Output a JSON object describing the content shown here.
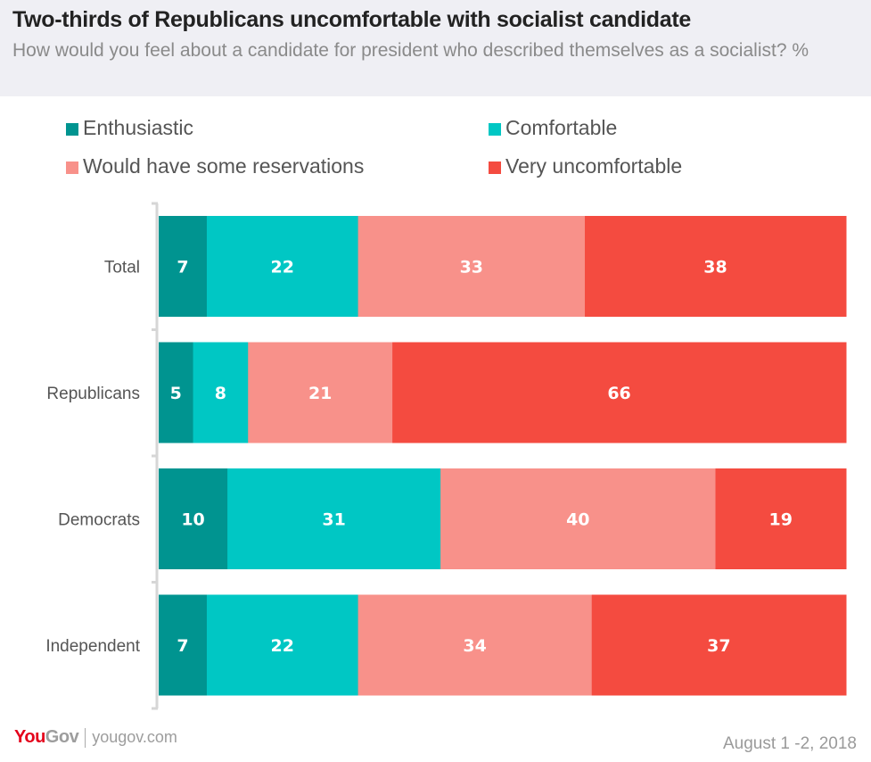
{
  "header": {
    "title": "Two-thirds of Republicans uncomfortable with socialist candidate",
    "subtitle": "How would you feel about a candidate for president who described themselves as a socialist? %"
  },
  "colors": {
    "enthusiastic": "#009490",
    "comfortable": "#00c7c4",
    "reservations": "#f8918a",
    "very_uncomfortable": "#f44b40",
    "axis": "#d6d6d6",
    "header_bg": "#efeff4"
  },
  "chart_data": {
    "type": "bar",
    "orientation": "horizontal",
    "stacked": true,
    "title": "Two-thirds of Republicans uncomfortable with socialist candidate",
    "subtitle": "How would you feel about a candidate for president who described themselves as a socialist? %",
    "xlabel": "",
    "ylabel": "",
    "xlim": [
      0,
      100
    ],
    "grid": false,
    "legend_position": "top",
    "categories": [
      "Total",
      "Republicans",
      "Democrats",
      "Independent"
    ],
    "series": [
      {
        "name": "Enthusiastic",
        "color": "#009490",
        "values": [
          7,
          5,
          10,
          7
        ]
      },
      {
        "name": "Comfortable",
        "color": "#00c7c4",
        "values": [
          22,
          8,
          31,
          22
        ]
      },
      {
        "name": "Would have some reservations",
        "color": "#f8918a",
        "values": [
          33,
          21,
          40,
          34
        ]
      },
      {
        "name": "Very uncomfortable",
        "color": "#f44b40",
        "values": [
          38,
          66,
          19,
          37
        ]
      }
    ]
  },
  "legend": [
    {
      "label": "Enthusiastic",
      "color": "#009490"
    },
    {
      "label": "Comfortable",
      "color": "#00c7c4"
    },
    {
      "label": "Would have some reservations",
      "color": "#f8918a"
    },
    {
      "label": "Very uncomfortable",
      "color": "#f44b40"
    }
  ],
  "footer": {
    "logo_you": "You",
    "logo_gov": "Gov",
    "url": "yougov.com",
    "date": "August 1 -2, 2018"
  }
}
